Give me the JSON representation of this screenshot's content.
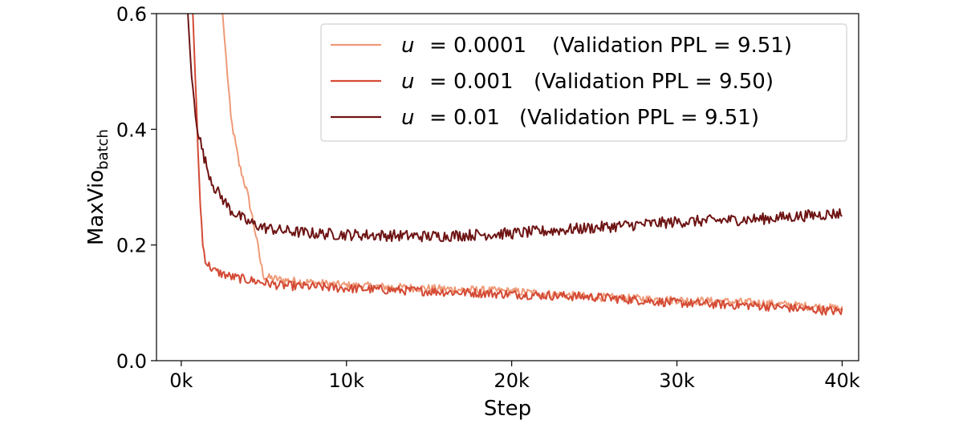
{
  "chart_data": {
    "type": "line",
    "xlabel": "Step",
    "ylabel_main": "MaxVio",
    "ylabel_sub": "batch",
    "xlim": [
      -1500,
      41000
    ],
    "ylim": [
      0.0,
      0.6
    ],
    "xticks": [
      0,
      10000,
      20000,
      30000,
      40000
    ],
    "xtick_labels": [
      "0k",
      "10k",
      "20k",
      "30k",
      "40k"
    ],
    "yticks": [
      0.0,
      0.2,
      0.4,
      0.6
    ],
    "ytick_labels": [
      "0.0",
      "0.2",
      "0.4",
      "0.6"
    ],
    "grid": false,
    "legend_position": "top-right",
    "series": [
      {
        "name": "u = 0.0001  (Validation PPL = 9.51)",
        "legend_var": "u",
        "legend_value": "= 0.0001",
        "legend_ppl": "(Validation PPL = 9.51)",
        "color": "#ef9a78",
        "x": [
          2500,
          3000,
          3500,
          4000,
          4500,
          4800,
          5000,
          6000,
          8000,
          10000,
          12000,
          15000,
          20000,
          25000,
          30000,
          35000,
          40000
        ],
        "y": [
          0.6,
          0.42,
          0.34,
          0.29,
          0.22,
          0.17,
          0.145,
          0.14,
          0.135,
          0.13,
          0.128,
          0.125,
          0.12,
          0.11,
          0.105,
          0.1,
          0.09
        ]
      },
      {
        "name": "u = 0.001  (Validation PPL = 9.50)",
        "legend_var": "u",
        "legend_value": "= 0.001",
        "legend_ppl": "(Validation PPL = 9.50)",
        "color": "#d44a35",
        "x": [
          700,
          900,
          1100,
          1300,
          1500,
          2000,
          3000,
          4000,
          5000,
          6000,
          8000,
          10000,
          15000,
          20000,
          25000,
          30000,
          35000,
          40000
        ],
        "y": [
          0.6,
          0.45,
          0.3,
          0.2,
          0.17,
          0.155,
          0.145,
          0.14,
          0.135,
          0.13,
          0.128,
          0.125,
          0.12,
          0.115,
          0.11,
          0.1,
          0.095,
          0.085
        ]
      },
      {
        "name": "u = 0.01  (Validation PPL = 9.51)",
        "legend_var": "u",
        "legend_value": "= 0.01",
        "legend_ppl": "(Validation PPL = 9.51)",
        "color": "#6e1414",
        "x": [
          400,
          600,
          800,
          1000,
          1300,
          1600,
          2000,
          2500,
          3000,
          3500,
          4000,
          5000,
          6000,
          8000,
          10000,
          15000,
          20000,
          25000,
          30000,
          35000,
          40000
        ],
        "y": [
          0.6,
          0.5,
          0.44,
          0.4,
          0.36,
          0.33,
          0.3,
          0.28,
          0.26,
          0.25,
          0.24,
          0.23,
          0.225,
          0.22,
          0.218,
          0.215,
          0.22,
          0.23,
          0.24,
          0.245,
          0.255
        ]
      }
    ]
  }
}
